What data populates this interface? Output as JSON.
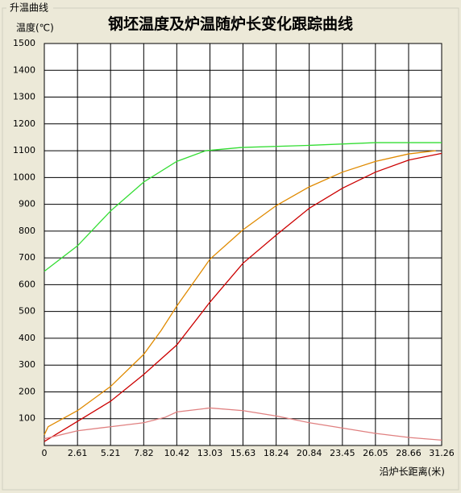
{
  "window": {
    "group_title": "升温曲线"
  },
  "chart_data": {
    "type": "line",
    "title": "钢坯温度及炉温随炉长变化跟踪曲线",
    "y_label": "温度(℃)",
    "x_label": "沿炉长距离(米)",
    "xlim": [
      0,
      31.26
    ],
    "xticks": [
      0,
      2.61,
      5.21,
      7.82,
      10.42,
      13.03,
      15.63,
      18.24,
      20.84,
      23.45,
      26.05,
      28.66,
      31.26
    ],
    "ylim": [
      0,
      1500
    ],
    "yticks": [
      100,
      200,
      300,
      400,
      500,
      600,
      700,
      800,
      900,
      1000,
      1100,
      1200,
      1300,
      1400,
      1500
    ],
    "grid": true,
    "series": [
      {
        "color": "#33dd33",
        "x": [
          0,
          2.61,
          5.21,
          7.82,
          10.42,
          12.7,
          15.5,
          20.84,
          26.05,
          31.26
        ],
        "values": [
          650,
          745,
          875,
          983,
          1060,
          1100,
          1112,
          1120,
          1130,
          1130
        ]
      },
      {
        "color": "#e08a00",
        "x": [
          0,
          0.3,
          2.61,
          5.21,
          7.82,
          9.2,
          10.42,
          13.03,
          15.63,
          18.24,
          20.84,
          23.45,
          26.05,
          28.66,
          30.8
        ],
        "values": [
          40,
          70,
          130,
          220,
          340,
          430,
          520,
          695,
          805,
          895,
          965,
          1020,
          1060,
          1088,
          1100
        ]
      },
      {
        "color": "#cc0000",
        "x": [
          0,
          2.61,
          5.21,
          7.82,
          10.42,
          13.03,
          15.63,
          18.24,
          20.84,
          23.45,
          26.05,
          28.66,
          31.26
        ],
        "values": [
          15,
          90,
          165,
          265,
          375,
          535,
          680,
          785,
          885,
          960,
          1020,
          1065,
          1090
        ]
      },
      {
        "color": "#e08080",
        "x": [
          0,
          2.61,
          5.21,
          7.82,
          9.5,
          10.42,
          13.03,
          15.63,
          18.24,
          20.84,
          23.45,
          26.05,
          28.66,
          31.26
        ],
        "values": [
          25,
          55,
          70,
          85,
          105,
          125,
          140,
          130,
          110,
          85,
          65,
          45,
          30,
          20
        ]
      }
    ]
  }
}
